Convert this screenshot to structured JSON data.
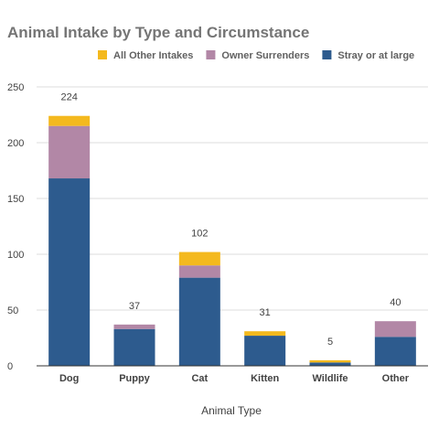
{
  "chart_data": {
    "type": "bar",
    "stacked": true,
    "title": "Animal Intake by Type and Circumstance",
    "xlabel": "Animal Type",
    "ylabel": "",
    "ylim": [
      0,
      250
    ],
    "yticks": [
      0,
      50,
      100,
      150,
      200,
      250
    ],
    "grid": true,
    "legend_position": "top",
    "categories": [
      "Dog",
      "Puppy",
      "Cat",
      "Kitten",
      "Wildlife",
      "Other"
    ],
    "totals": [
      224,
      37,
      102,
      31,
      5,
      40
    ],
    "series": [
      {
        "name": "Stray or at large",
        "color": "#2d5b8e",
        "values": [
          168,
          33,
          79,
          27,
          3,
          26
        ]
      },
      {
        "name": "Owner Surrenders",
        "color": "#b287a6",
        "values": [
          47,
          4,
          11,
          0,
          0,
          14
        ]
      },
      {
        "name": "All Other Intakes",
        "color": "#f4b91e",
        "values": [
          9,
          0,
          12,
          4,
          2,
          0
        ]
      }
    ],
    "legend_order": [
      "All Other Intakes",
      "Owner Surrenders",
      "Stray or at large"
    ]
  }
}
